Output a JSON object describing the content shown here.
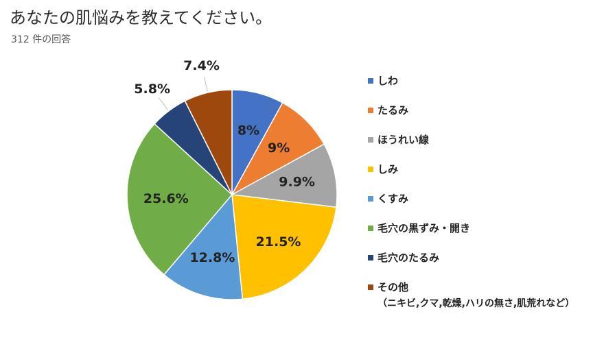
{
  "chart_data": {
    "type": "pie",
    "title": "あなたの肌悩みを教えてください。",
    "subtitle": "312 件の回答",
    "categories": [
      "しわ",
      "たるみ",
      "ほうれい線",
      "しみ",
      "くすみ",
      "毛穴の黒ずみ・開き",
      "毛穴のたるみ",
      "その他"
    ],
    "values": [
      8,
      9,
      9.9,
      21.5,
      12.8,
      25.6,
      5.8,
      7.4
    ],
    "labels": [
      "8%",
      "9%",
      "9.9%",
      "21.5%",
      "12.8%",
      "25.6%",
      "5.8%",
      "7.4%"
    ],
    "colors": [
      "#4472C4",
      "#ED7D31",
      "#A5A5A5",
      "#FFC000",
      "#5B9BD5",
      "#70AD47",
      "#264478",
      "#9E480E"
    ],
    "legend_note": "（ニキビ,クマ,乾燥,ハリの無さ,肌荒れなど）",
    "legend_position": "right"
  }
}
